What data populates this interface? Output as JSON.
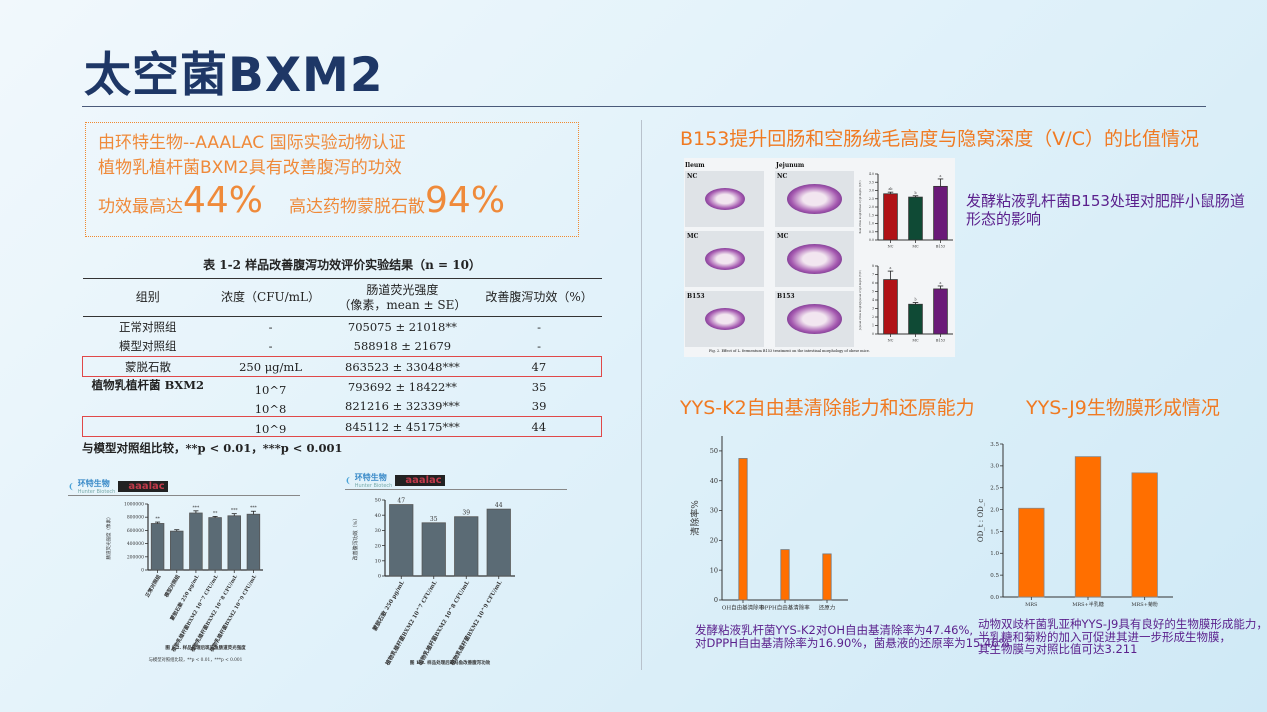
{
  "slide": {
    "title": "太空菌BXM2"
  },
  "claim": {
    "line1": "由环特生物--AAALAC 国际实验动物认证",
    "line2": "植物乳植杆菌BXM2具有改善腹泻的功效",
    "line3a_text": "功效最高达",
    "line3a_value": "44%",
    "line3b_text": "高达药物蒙脱石散",
    "line3b_value": "94%"
  },
  "table": {
    "caption": "表 1-2  样品改善腹泻功效评价实验结果（n = 10）",
    "headers": [
      "组别",
      "浓度（CFU/mL）",
      "肠道荧光强度\n（像素，mean ± SE）",
      "改善腹泻功效（%）"
    ],
    "rows": [
      [
        "正常对照组",
        "-",
        "705075 ± 21018**",
        "-"
      ],
      [
        "模型对照组",
        "-",
        "588918 ± 21679",
        "-"
      ],
      [
        "蒙脱石散",
        "250 μg/mL",
        "863523 ± 33048***",
        "47"
      ],
      [
        "植物乳植杆菌 BXM2",
        "10^7",
        "793692 ± 18422**",
        "35"
      ],
      [
        "",
        "10^8",
        "821216 ± 32339***",
        "39"
      ],
      [
        "",
        "10^9",
        "845112 ± 45175***",
        "44"
      ]
    ],
    "note": "与模型对照组比较，**p < 0.01，***p < 0.001"
  },
  "logos": {
    "hunter": "环特生物",
    "hunter_sub": "Hunter Biotech",
    "aaalac": "aaalac"
  },
  "histology": {
    "col_labels": [
      "Ileum",
      "Jejunum"
    ],
    "row_labels": [
      "NC",
      "MC",
      "B153"
    ],
    "caption": "Fig. 2. Effect of L. fermentum B153 treatment on the intestinal morphology of obese mice.",
    "description": "发酵粘液乳杆菌B153处理对肥胖小鼠肠道形态的影响"
  },
  "sections": {
    "b153_title": "B153提升回肠和空肠绒毛高度与隐窝深度（V/C）的比值情况",
    "k2_title": "YYS-K2自由基清除能力和还原能力",
    "j9_title": "YYS-J9生物膜形成情况",
    "k2_caption_1": "发酵粘液乳杆菌YYS-K2对OH自由基清除率为47.46%,",
    "k2_caption_2": "对DPPH自由基清除率为16.90%，菌悬液的还原率为15.46%",
    "j9_caption_1": "动物双歧杆菌乳亚种YYS-J9具有良好的生物膜形成能力，",
    "j9_caption_2": "半乳糖和菊粉的加入可促进其进一步形成生物膜，",
    "j9_caption_3": "其生物膜与对照比值可达3.211"
  },
  "chart_data": [
    {
      "type": "bar",
      "title": "",
      "ylabel": "肠道荧光强度（像素）",
      "ylim": [
        0,
        1000000
      ],
      "yticks": [
        0,
        200000,
        400000,
        600000,
        800000,
        1000000
      ],
      "categories": [
        "正常对照组",
        "模型对照组",
        "蒙脱石散 250 μg/mL",
        "植物乳植杆菌BXM2 10^7 CFU/mL",
        "植物乳植杆菌BXM2 10^8 CFU/mL",
        "植物乳植杆菌BXM2 10^9 CFU/mL"
      ],
      "values": [
        705075,
        588918,
        863523,
        793692,
        821216,
        845112
      ],
      "errors": [
        21018,
        21679,
        33048,
        18422,
        32339,
        45175
      ],
      "annotations": [
        "**",
        "",
        "***",
        "**",
        "***",
        "***"
      ],
      "caption": "图 1-2. 样品处理后斑马鱼肠道荧光强度",
      "note": "与模型对照组比较，**p < 0.01，***p < 0.001",
      "color": "#5b6b75"
    },
    {
      "type": "bar",
      "title": "",
      "ylabel": "改善腹泻功效（%）",
      "ylim": [
        0,
        50
      ],
      "yticks": [
        0,
        10,
        20,
        30,
        40,
        50
      ],
      "categories": [
        "蒙脱石散 250 μg/mL",
        "植物乳植杆菌BXM2 10^7 CFU/mL",
        "植物乳植杆菌BXM2 10^8 CFU/mL",
        "植物乳植杆菌BXM2 10^9 CFU/mL"
      ],
      "values": [
        47,
        35,
        39,
        44
      ],
      "annotations": [
        "47",
        "35",
        "39",
        "44"
      ],
      "caption": "图 1-3. 样品处理后斑马鱼改善腹泻功效",
      "color": "#5b6b75"
    },
    {
      "type": "bar",
      "ylabel": "Ileal villus length/Ileal crypt depth (V/C)",
      "ylim": [
        0,
        4.0
      ],
      "yticks": [
        0,
        0.5,
        1.0,
        1.5,
        2.0,
        2.5,
        3.0,
        3.5,
        4.0
      ],
      "categories": [
        "NC",
        "MC",
        "B153"
      ],
      "values": [
        2.8,
        2.6,
        3.25
      ],
      "errors": [
        0.1,
        0.08,
        0.45
      ],
      "annotations": [
        "ab",
        "b",
        "a"
      ],
      "colors": [
        "#b01217",
        "#0f4a35",
        "#6a1a78"
      ]
    },
    {
      "type": "bar",
      "ylabel": "Jejunal villus length/Jejunal crypt depth (V/C)",
      "ylim": [
        0,
        8
      ],
      "yticks": [
        0,
        1,
        2,
        3,
        4,
        5,
        6,
        7,
        8
      ],
      "categories": [
        "NC",
        "MC",
        "B153"
      ],
      "values": [
        6.4,
        3.5,
        5.3
      ],
      "errors": [
        1.0,
        0.2,
        0.35
      ],
      "annotations": [
        "a",
        "b",
        "a"
      ],
      "colors": [
        "#b01217",
        "#0f4a35",
        "#6a1a78"
      ]
    },
    {
      "type": "bar",
      "ylabel": "清除率%",
      "ylim": [
        0,
        55
      ],
      "yticks": [
        0,
        10,
        20,
        30,
        40,
        50
      ],
      "categories": [
        "OH自由基清除率",
        "DPPH自由基清除率",
        "还原力"
      ],
      "values": [
        47.46,
        16.9,
        15.46
      ],
      "color": "#ff6f00"
    },
    {
      "type": "bar",
      "ylabel": "OD_t : OD_c",
      "ylim": [
        0,
        3.5
      ],
      "yticks": [
        0.0,
        0.5,
        1.0,
        1.5,
        2.0,
        2.5,
        3.0,
        3.5
      ],
      "categories": [
        "MRS",
        "MRS+半乳糖",
        "MRS+菊粉"
      ],
      "values": [
        2.03,
        3.211,
        2.84
      ],
      "color": "#ff6f00"
    }
  ]
}
